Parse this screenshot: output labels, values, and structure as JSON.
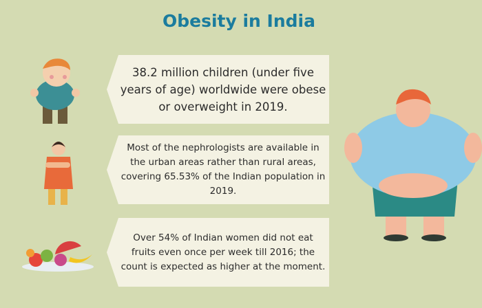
{
  "title": "Obesity in India",
  "facts": [
    "38.2 million children (under five years of age) worldwide were obese or overweight in 2019.",
    "Most of the nephrologists are available in the urban areas rather than rural areas, covering 65.53% of the Indian population in 2019.",
    "Over 54% of Indian women did not eat fruits even once per week till 2016; the count is expected as higher at the moment."
  ]
}
